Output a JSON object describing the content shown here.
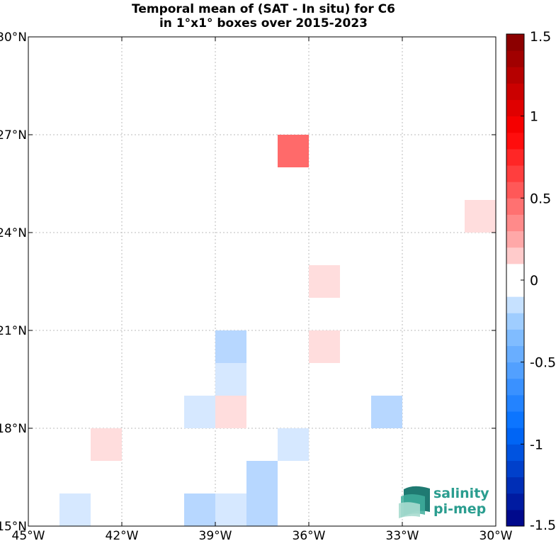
{
  "chart_data": {
    "type": "heatmap",
    "title_line1": "Temporal mean of (SAT - In situ) for C6",
    "title_line2": "in 1°x1° boxes over 2015-2023",
    "xlim": [
      -45,
      -30
    ],
    "ylim": [
      15,
      30
    ],
    "x_ticks": [
      {
        "value": -45,
        "label": "45°W"
      },
      {
        "value": -42,
        "label": "42°W"
      },
      {
        "value": -39,
        "label": "39°W"
      },
      {
        "value": -36,
        "label": "36°W"
      },
      {
        "value": -33,
        "label": "33°W"
      },
      {
        "value": -30,
        "label": "30°W"
      }
    ],
    "y_ticks": [
      {
        "value": 15,
        "label": "15°N"
      },
      {
        "value": 18,
        "label": "18°N"
      },
      {
        "value": 21,
        "label": "21°N"
      },
      {
        "value": 24,
        "label": "24°N"
      },
      {
        "value": 27,
        "label": "27°N"
      },
      {
        "value": 30,
        "label": "30°N"
      }
    ],
    "grid": true,
    "colorbar": {
      "range": [
        -1.5,
        1.5
      ],
      "ticks": [
        {
          "value": 1.5,
          "label": "1.5"
        },
        {
          "value": 1,
          "label": "1"
        },
        {
          "value": 0.5,
          "label": "0.5"
        },
        {
          "value": 0,
          "label": "0"
        },
        {
          "value": -0.5,
          "label": "-0.5"
        },
        {
          "value": -1,
          "label": "-1"
        },
        {
          "value": -1.5,
          "label": "-1.5"
        }
      ]
    },
    "cells": [
      {
        "lon": -37,
        "lat": 26,
        "value": 0.65
      },
      {
        "lon": -31,
        "lat": 24,
        "value": 0.15
      },
      {
        "lon": -36,
        "lat": 22,
        "value": 0.15
      },
      {
        "lon": -36,
        "lat": 20,
        "value": 0.15
      },
      {
        "lon": -39,
        "lat": 20,
        "value": -0.35
      },
      {
        "lon": -39,
        "lat": 19,
        "value": -0.15
      },
      {
        "lon": -40,
        "lat": 18,
        "value": -0.15
      },
      {
        "lon": -39,
        "lat": 18,
        "value": 0.15
      },
      {
        "lon": -34,
        "lat": 18,
        "value": -0.3
      },
      {
        "lon": -43,
        "lat": 17,
        "value": 0.15
      },
      {
        "lon": -37,
        "lat": 17,
        "value": -0.15
      },
      {
        "lon": -38,
        "lat": 16,
        "value": -0.3
      },
      {
        "lon": -38,
        "lat": 15,
        "value": -0.3
      },
      {
        "lon": -44,
        "lat": 15,
        "value": -0.15
      },
      {
        "lon": -40,
        "lat": 15,
        "value": -0.35
      },
      {
        "lon": -39,
        "lat": 15,
        "value": -0.15
      }
    ]
  },
  "logo": {
    "line1": "salinity",
    "line2": "pi-mep",
    "color": "#2a9d8f"
  }
}
